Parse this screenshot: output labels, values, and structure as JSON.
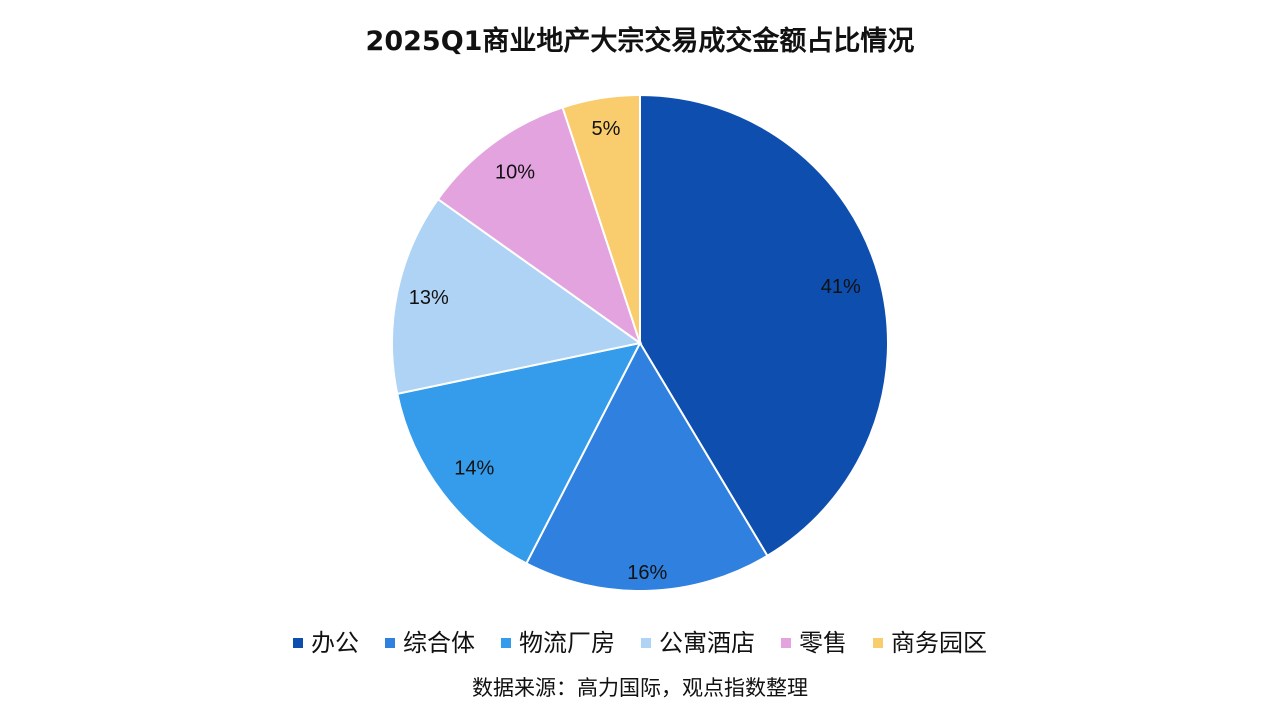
{
  "chart_data": {
    "type": "pie",
    "title": "2025Q1商业地产大宗交易成交金额占比情况",
    "categories": [
      "办公",
      "综合体",
      "物流厂房",
      "公寓酒店",
      "零售",
      "商务园区"
    ],
    "values": [
      41,
      16,
      14,
      13,
      10,
      5
    ],
    "value_labels": [
      "41%",
      "16%",
      "14%",
      "13%",
      "10%",
      "5%"
    ],
    "colors": [
      "#0E4EAE",
      "#2F80DF",
      "#349CEB",
      "#AED3F4",
      "#E3A3DF",
      "#F9CC6E"
    ],
    "legend_position": "bottom",
    "start_angle": "12 o'clock",
    "direction": "clockwise"
  },
  "source_note": "数据来源：高力国际，观点指数整理"
}
